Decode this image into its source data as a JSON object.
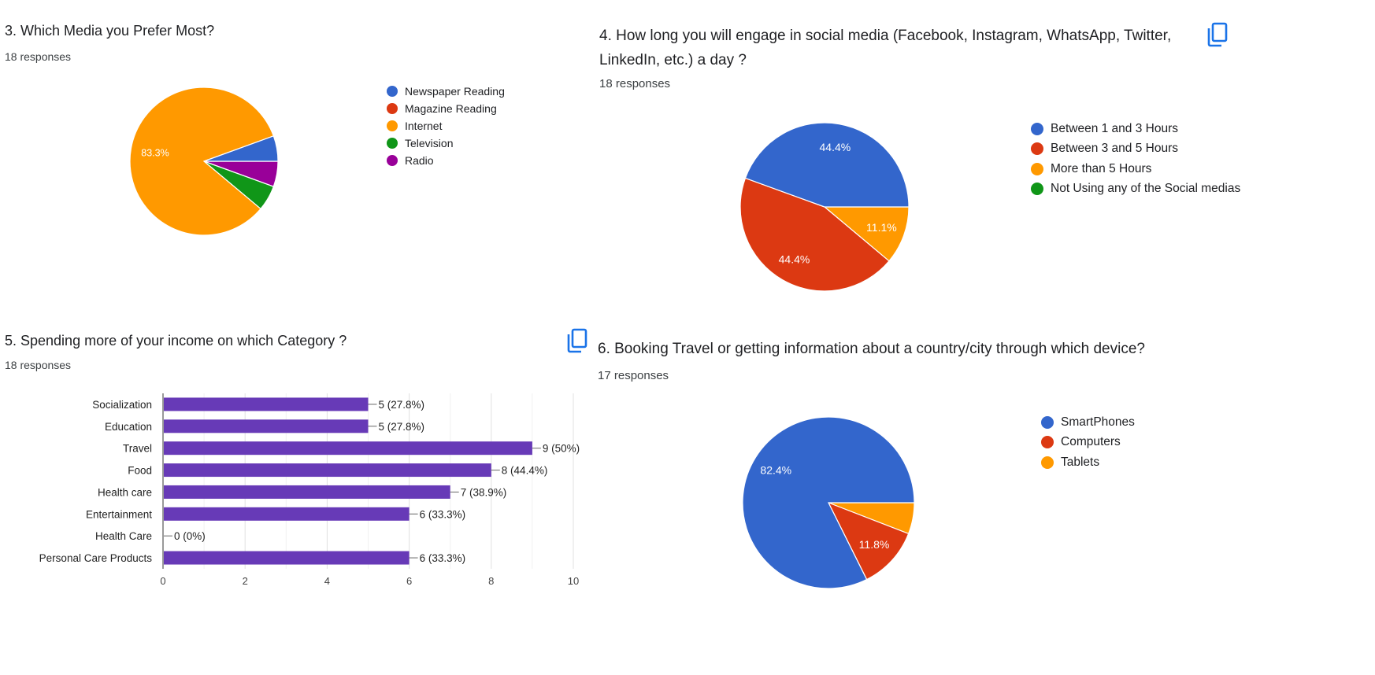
{
  "chart_data": [
    {
      "type": "pie",
      "title": "3. Which Media you Prefer Most?",
      "subtitle": "18 responses",
      "categories": [
        "Newspaper Reading",
        "Magazine Reading",
        "Internet",
        "Television",
        "Radio"
      ],
      "values": [
        1,
        0,
        15,
        1,
        1
      ],
      "slice_labels": [
        "",
        "",
        "83.3%",
        "",
        ""
      ],
      "colors": [
        "#3366cc",
        "#dc3912",
        "#ff9900",
        "#109618",
        "#990099"
      ],
      "legend": "right"
    },
    {
      "type": "pie",
      "title": "4. How long you will engage in social media (Facebook, Instagram, WhatsApp, Twitter, LinkedIn, etc.) a day ?",
      "subtitle": "18 responses",
      "categories": [
        "Between 1 and 3 Hours",
        "Between 3 and 5 Hours",
        "More than 5 Hours",
        "Not Using any of the Social medias"
      ],
      "values": [
        8,
        8,
        2,
        0
      ],
      "slice_labels": [
        "44.4%",
        "44.4%",
        "11.1%",
        ""
      ],
      "colors": [
        "#3366cc",
        "#dc3912",
        "#ff9900",
        "#109618"
      ],
      "legend": "right"
    },
    {
      "type": "bar",
      "orientation": "horizontal",
      "title": "5. Spending more of your income on which Category ?",
      "subtitle": "18 responses",
      "categories": [
        "Socialization",
        "Education",
        "Travel",
        "Food",
        "Health care",
        "Entertainment",
        "Health Care",
        "Personal Care Products"
      ],
      "values": [
        5,
        5,
        9,
        8,
        7,
        6,
        0,
        6
      ],
      "data_labels": [
        "5 (27.8%)",
        "5 (27.8%)",
        "9 (50%)",
        "8 (44.4%)",
        "7 (38.9%)",
        "6 (33.3%)",
        "0 (0%)",
        "6 (33.3%)"
      ],
      "xlim": [
        0,
        10
      ],
      "xticks": [
        "0",
        "2",
        "4",
        "6",
        "8",
        "10"
      ],
      "color": "#673ab7",
      "grid": true
    },
    {
      "type": "pie",
      "title": "6. Booking Travel or getting information about a country/city through which device?",
      "subtitle": "17 responses",
      "categories": [
        "SmartPhones",
        "Computers",
        "Tablets"
      ],
      "values": [
        14,
        2,
        1
      ],
      "slice_labels": [
        "82.4%",
        "11.8%",
        ""
      ],
      "colors": [
        "#3366cc",
        "#dc3912",
        "#ff9900"
      ],
      "legend": "right"
    }
  ],
  "icons": {
    "copy": "copy-icon",
    "color": "#1a73e8"
  }
}
